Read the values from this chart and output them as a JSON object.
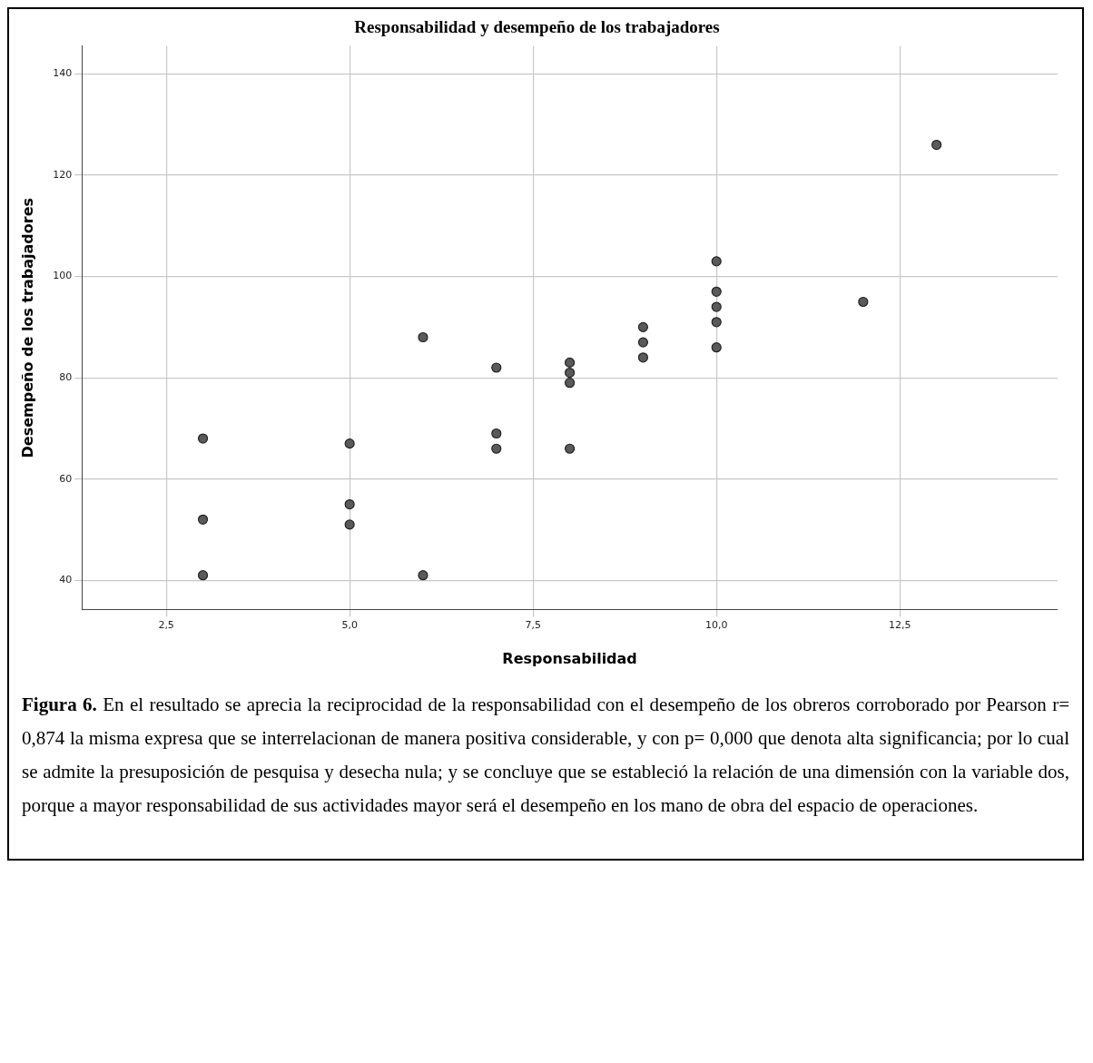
{
  "chart_data": {
    "type": "scatter",
    "title": "Responsabilidad y desempeño de los trabajadores",
    "xlabel": "Responsabilidad",
    "ylabel": "Desempeño de los trabajadores",
    "x": [
      3,
      3,
      3,
      5,
      5,
      5,
      6,
      6,
      7,
      7,
      7,
      8,
      8,
      8,
      8,
      9,
      9,
      9,
      10,
      10,
      10,
      10,
      10,
      12,
      13
    ],
    "values": [
      68,
      52,
      41,
      67,
      55,
      51,
      88,
      41,
      82,
      69,
      66,
      83,
      81,
      79,
      66,
      90,
      87,
      84,
      103,
      97,
      94,
      91,
      86,
      95,
      126
    ],
    "color": "#5a5a5a",
    "marker": "circle",
    "grid": true,
    "legend": false,
    "xlim": [
      1.35,
      14.65
    ],
    "xticks": [
      {
        "value": 2.5,
        "label": "2,5"
      },
      {
        "value": 5,
        "label": "5,0"
      },
      {
        "value": 7.5,
        "label": "7,5"
      },
      {
        "value": 10,
        "label": "10,0"
      },
      {
        "value": 12.5,
        "label": "12,5"
      }
    ],
    "ylim": [
      34.2,
      145.5
    ],
    "yticks": [
      40,
      60,
      80,
      100,
      120,
      140
    ],
    "annotations": [
      "Figura 6. En el resultado se aprecia la reciprocidad de la responsabilidad con el desempeño de los obreros corroborado por Pearson r= 0,874 la misma expresa que se interrelacionan de manera positiva considerable, y con p= 0,000 que denota alta significancia; por lo cual se admite la presuposición de pesquisa y desecha nula; y se concluye que se estableció la relación de una dimensión con la variable dos, porque a mayor responsabilidad de sus actividades mayor será el desempeño en los mano de obra del espacio de operaciones."
    ]
  }
}
